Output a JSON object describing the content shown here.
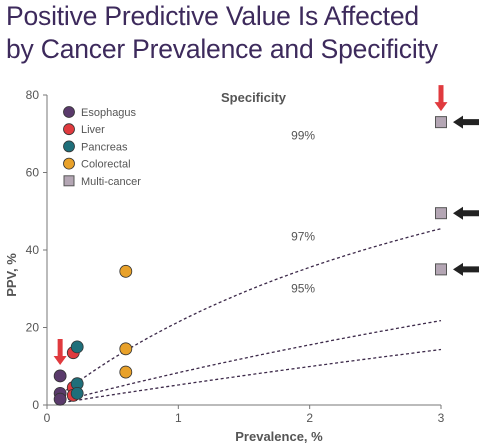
{
  "title_lines": [
    "Positive Predictive Value Is Affected",
    "by Cancer Prevalence and Specificity"
  ],
  "chart_data": {
    "type": "scatter",
    "xlabel": "Prevalence, %",
    "ylabel": "PPV, %",
    "xlim": [
      0,
      3
    ],
    "ylim": [
      0,
      80
    ],
    "x_ticks": [
      0,
      1,
      2,
      3
    ],
    "y_ticks": [
      0,
      20,
      40,
      60,
      80
    ],
    "grid": false,
    "legend_title": "Specificity",
    "legend_position": "top-left",
    "curves": [
      {
        "label": "99%",
        "specificity": 99,
        "label_at": [
          1.95,
          68.5
        ]
      },
      {
        "label": "97%",
        "specificity": 97,
        "label_at": [
          1.95,
          42.5
        ]
      },
      {
        "label": "95%",
        "specificity": 95,
        "label_at": [
          1.95,
          29.0
        ]
      }
    ],
    "series": [
      {
        "name": "Esophagus",
        "color": "#5a3a6b",
        "marker": "circle",
        "points": [
          [
            0.1,
            7.5
          ],
          [
            0.1,
            3.0
          ],
          [
            0.1,
            1.5
          ]
        ]
      },
      {
        "name": "Liver",
        "color": "#e03a3e",
        "marker": "circle",
        "points": [
          [
            0.2,
            13.5
          ],
          [
            0.2,
            4.5
          ],
          [
            0.2,
            2.5
          ]
        ]
      },
      {
        "name": "Pancreas",
        "color": "#1f6f7a",
        "marker": "circle",
        "points": [
          [
            0.23,
            15.0
          ],
          [
            0.23,
            5.5
          ],
          [
            0.23,
            3.0
          ]
        ]
      },
      {
        "name": "Colorectal",
        "color": "#e8a12a",
        "marker": "circle",
        "points": [
          [
            0.6,
            34.5
          ],
          [
            0.6,
            14.5
          ],
          [
            0.6,
            8.5
          ]
        ]
      },
      {
        "name": "Multi-cancer",
        "color": "#b4a6b4",
        "marker": "square",
        "points": [
          [
            3,
            73.0
          ],
          [
            3,
            49.5
          ],
          [
            3,
            35.0
          ]
        ]
      }
    ],
    "annotations": [
      {
        "type": "red-arrow-down",
        "at": [
          0.1,
          7.5
        ]
      },
      {
        "type": "red-arrow-down",
        "at": [
          3,
          73.0
        ]
      },
      {
        "type": "black-arrow-left",
        "at": [
          3,
          73.0
        ]
      },
      {
        "type": "black-arrow-left",
        "at": [
          3,
          49.5
        ]
      },
      {
        "type": "black-arrow-left",
        "at": [
          3,
          35.0
        ]
      }
    ]
  },
  "colors": {
    "title": "#3d2a5c",
    "curve": "#3d2a4a",
    "axis": "#777777",
    "red_arrow": "#e03a3e",
    "black_arrow": "#222222"
  }
}
